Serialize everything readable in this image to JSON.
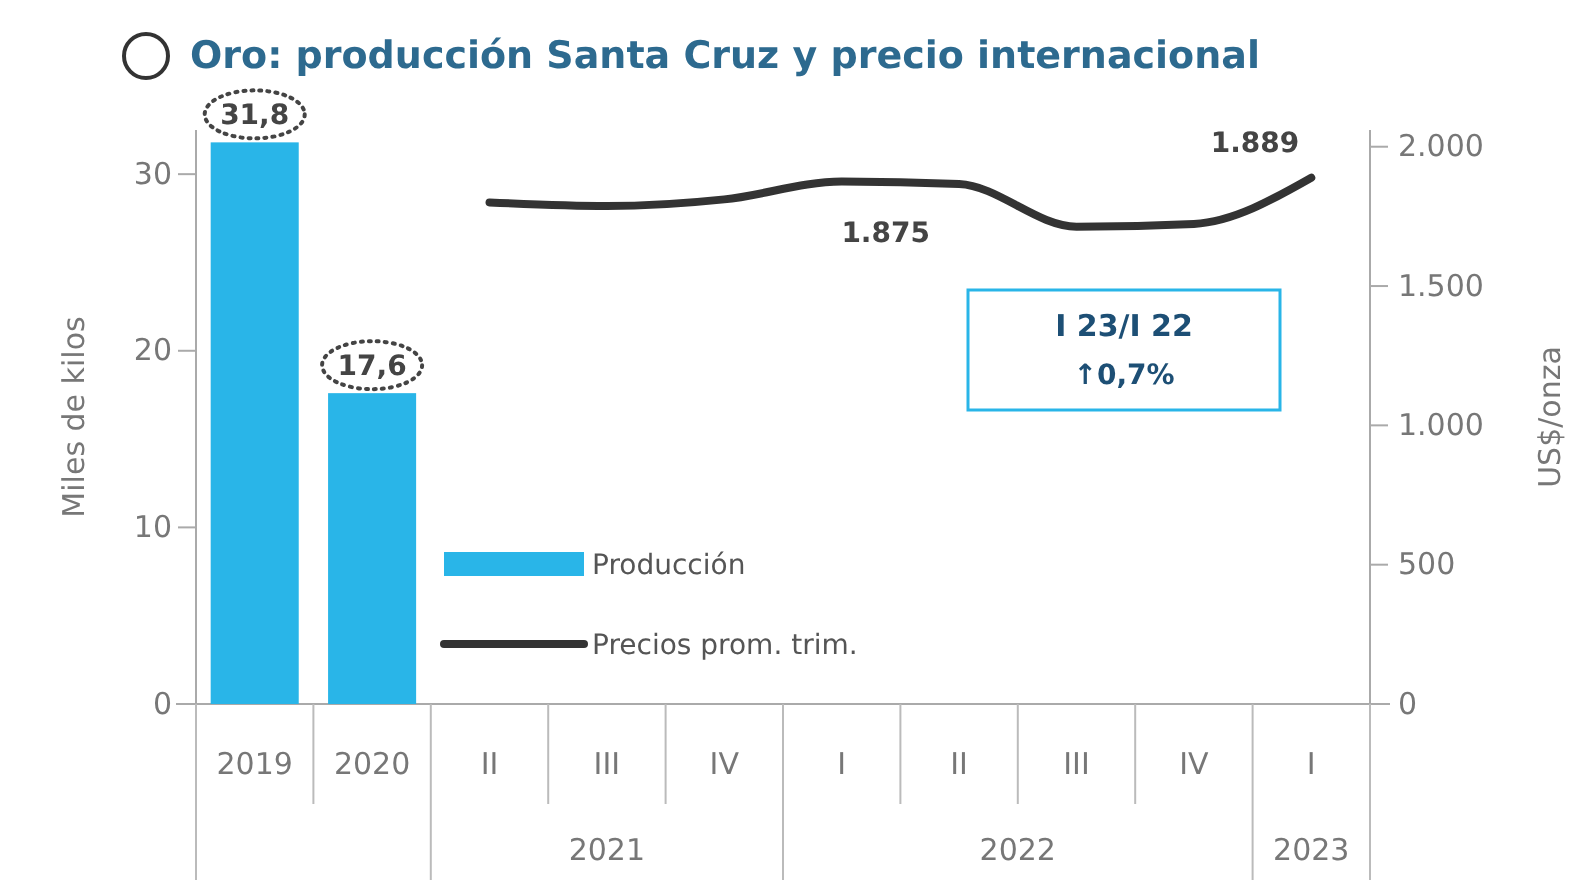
{
  "chart_data": {
    "type": "bar",
    "title": "Oro: producción Santa Cruz y precio internacional",
    "ylabel": "Miles de kilos",
    "y2label": "US$/onza",
    "categories": [
      "2019",
      "2020",
      "II",
      "III",
      "IV",
      "I",
      "II",
      "III",
      "IV",
      "I"
    ],
    "series": [
      {
        "name": "Producción",
        "color": "#29b5e8",
        "values": [
          31.8,
          17.6,
          null,
          null,
          null,
          null,
          null,
          null,
          null,
          null
        ],
        "value_labels": [
          "31,8",
          "17,6",
          null,
          null,
          null,
          null,
          null,
          null,
          null,
          null
        ]
      },
      {
        "name": "Precios prom. trim.",
        "type": "line",
        "axis": "y2",
        "color": "#333333",
        "values": [
          null,
          null,
          1800,
          1787,
          1811,
          1875,
          1866,
          1713,
          1723,
          1889
        ],
        "value_labels": [
          null,
          null,
          null,
          null,
          null,
          "1.875",
          null,
          null,
          null,
          "1.889"
        ]
      }
    ],
    "ylim": [
      0,
      32.5
    ],
    "yticks": [
      0,
      10,
      20,
      30
    ],
    "y2lim": [
      0,
      2060
    ],
    "y2ticks": [
      {
        "value": 0,
        "label": "0"
      },
      {
        "value": 500,
        "label": "500"
      },
      {
        "value": 1000,
        "label": "1.000"
      },
      {
        "value": 1500,
        "label": "1.500"
      },
      {
        "value": 2000,
        "label": "2.000"
      }
    ],
    "legend": "bottom left",
    "annotations": [
      "I 23/I 22",
      "↑0,7%",
      "2021",
      "2022",
      "2023"
    ]
  }
}
